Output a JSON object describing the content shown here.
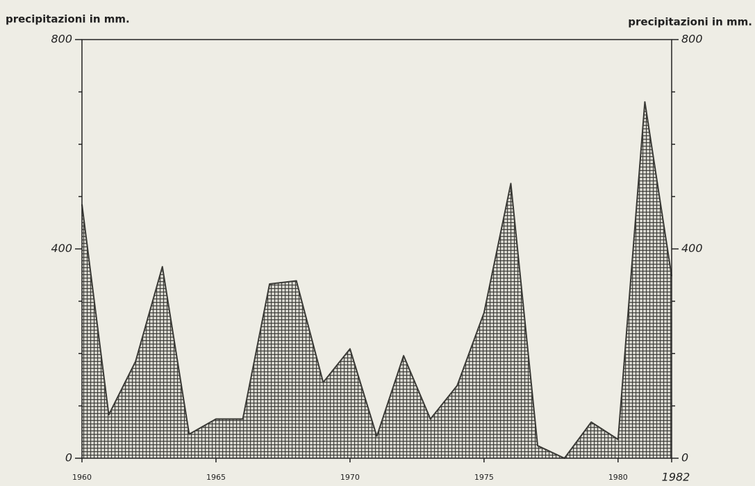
{
  "chart_data": {
    "type": "area",
    "ylabel": "precipitazioni in mm.",
    "y2label": "precipitazioni in mm.",
    "x": [
      1960,
      1961,
      1962,
      1963,
      1964,
      1965,
      1966,
      1967,
      1968,
      1969,
      1970,
      1971,
      1972,
      1973,
      1974,
      1975,
      1976,
      1977,
      1978,
      1979,
      1980,
      1981,
      1982
    ],
    "values": [
      485,
      83,
      185,
      366,
      46,
      75,
      75,
      333,
      339,
      145,
      209,
      42,
      196,
      75,
      139,
      278,
      525,
      24,
      0,
      69,
      36,
      681,
      348
    ],
    "color": "#3a3a36",
    "xlim": [
      1960,
      1982
    ],
    "xticks": [
      1960,
      1965,
      1970,
      1975,
      1980,
      1982
    ],
    "ylim": [
      0,
      800
    ],
    "yticks": [
      0,
      400,
      800
    ],
    "minor_yticks": [
      100,
      200,
      300,
      500,
      600,
      700
    ],
    "y2lim": [
      0,
      800
    ],
    "y2ticks": [
      0,
      400,
      800
    ],
    "grid": false
  }
}
